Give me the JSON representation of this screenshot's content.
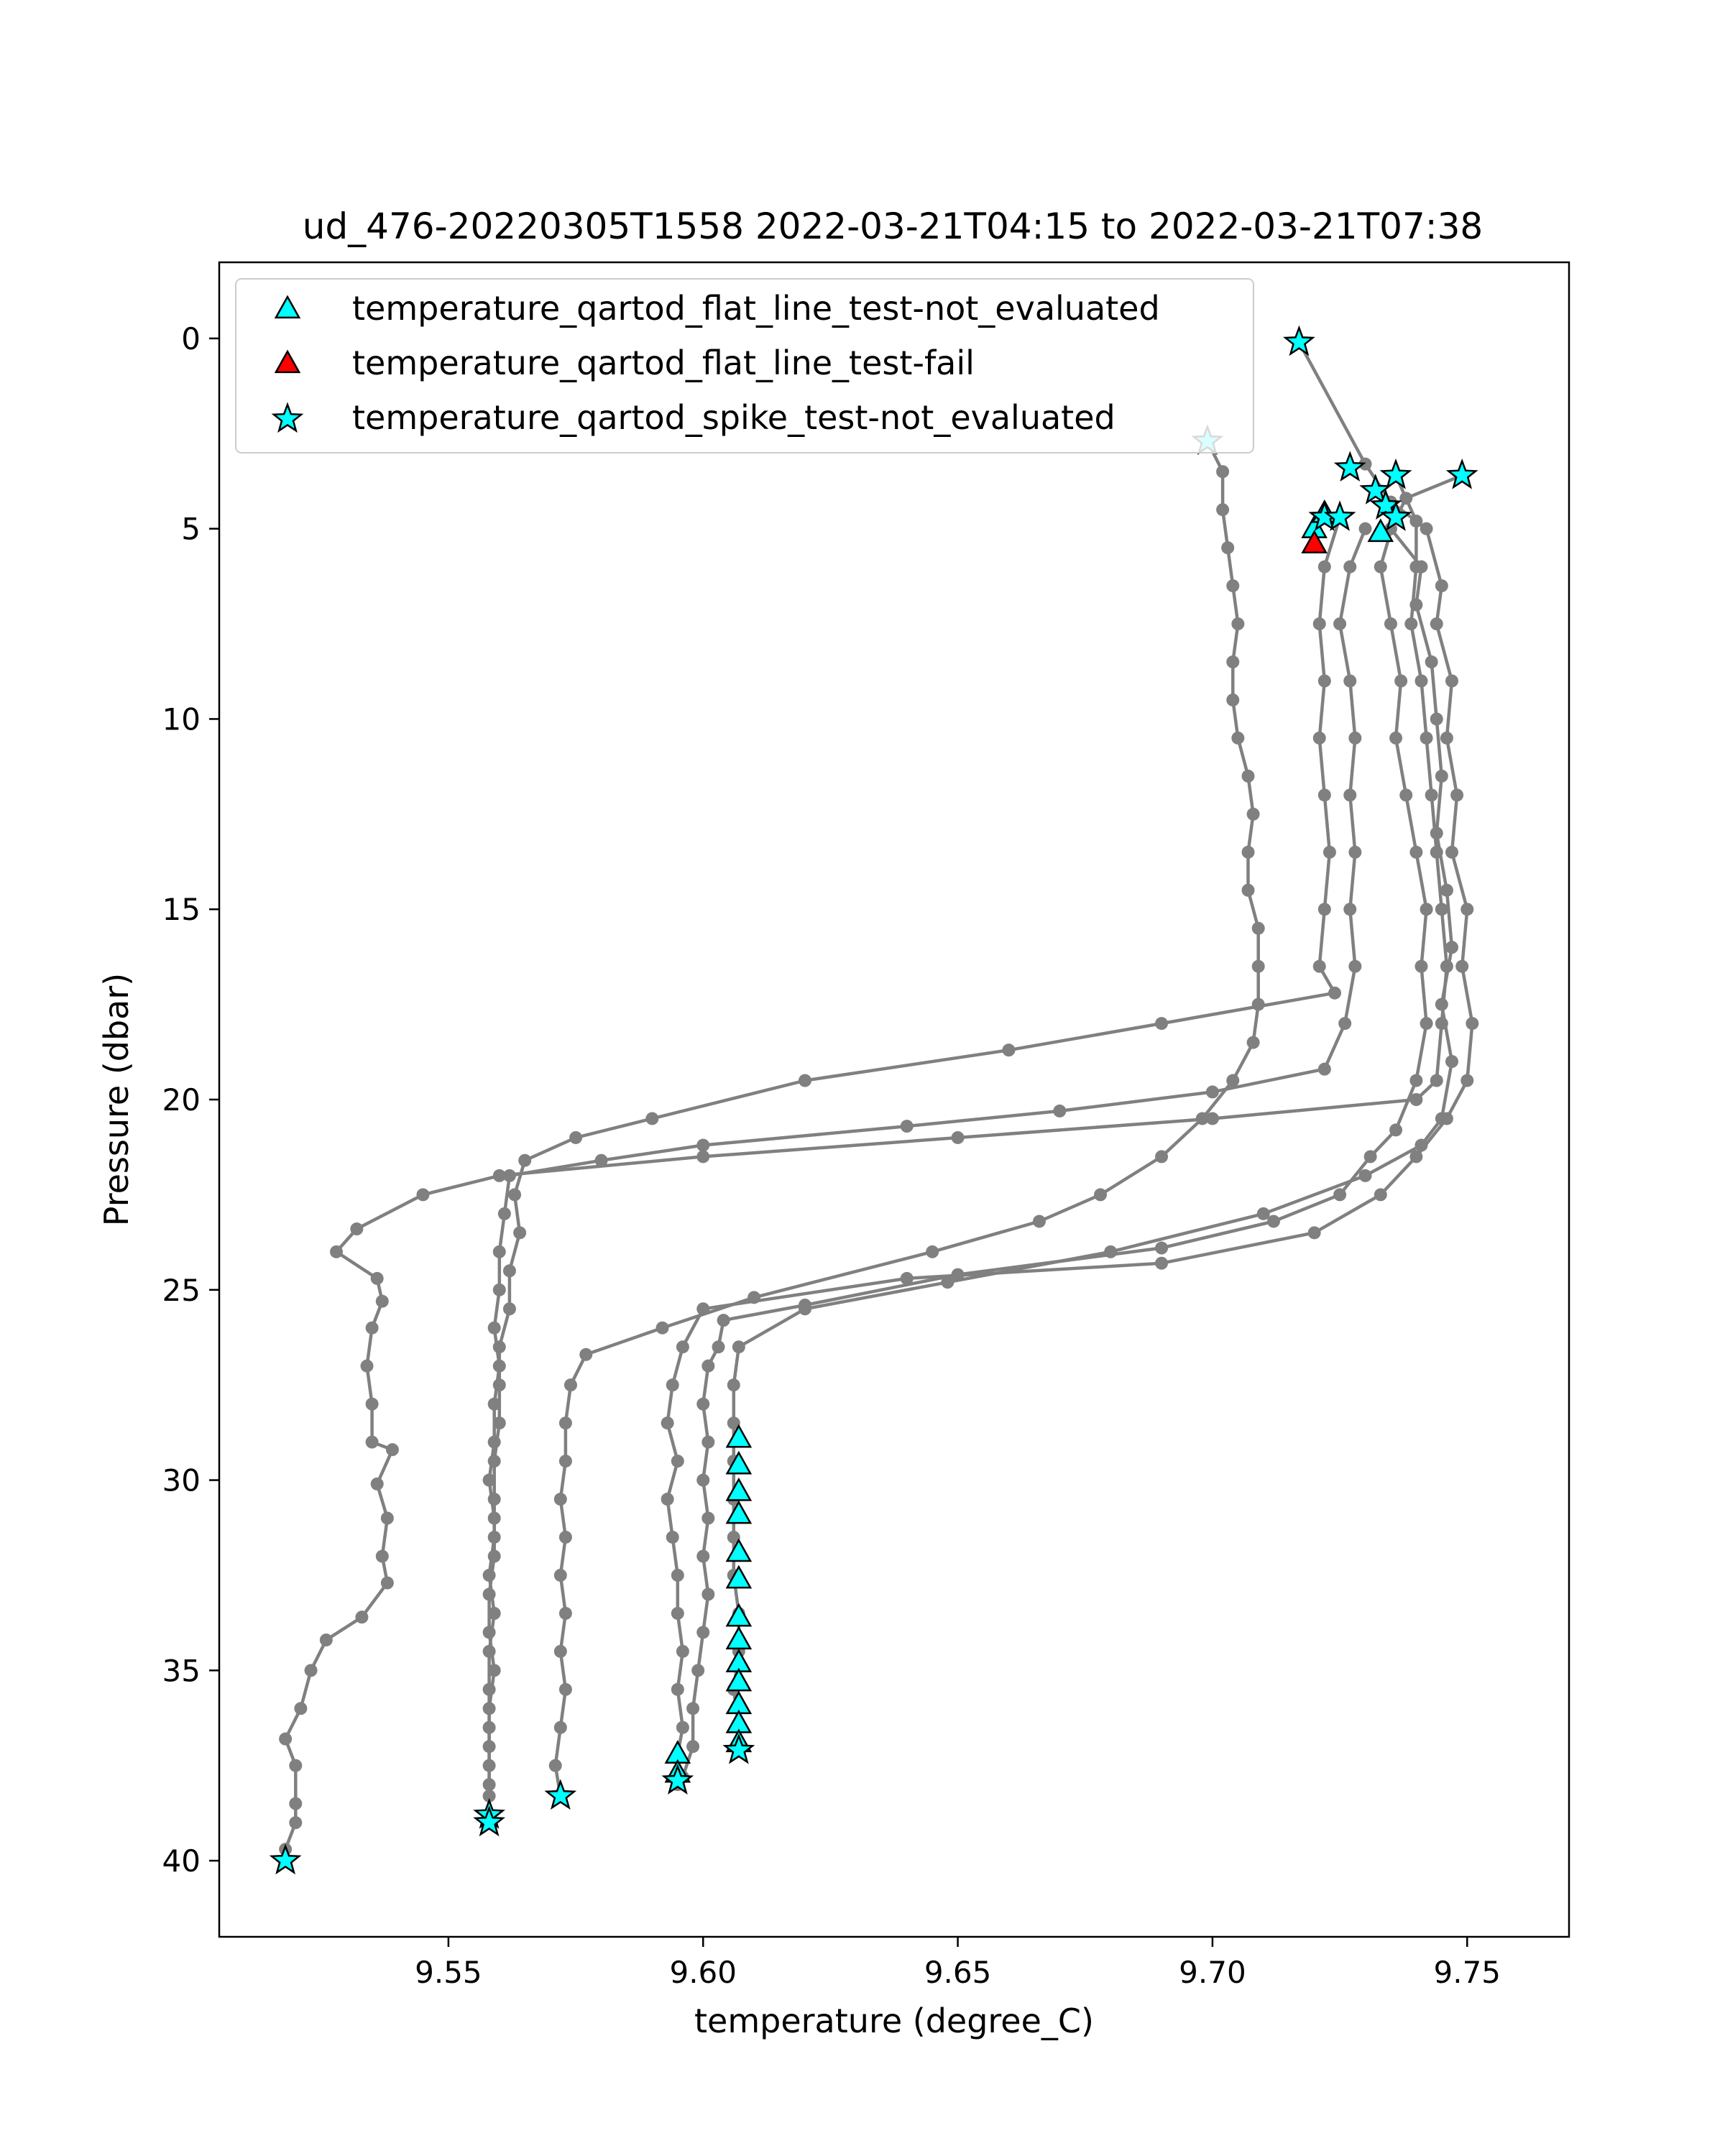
{
  "chart_data": {
    "type": "line",
    "title": "ud_476-20220305T1558 2022-03-21T04:15 to 2022-03-21T07:38",
    "xlabel": "temperature (degree_C)",
    "ylabel": "Pressure (dbar)",
    "xlim": [
      9.505,
      9.77
    ],
    "ylim": [
      42,
      -2
    ],
    "y_inverted": true,
    "x_ticks": [
      9.55,
      9.6,
      9.65,
      9.7,
      9.75
    ],
    "x_tick_labels": [
      "9.55",
      "9.60",
      "9.65",
      "9.70",
      "9.75"
    ],
    "y_ticks": [
      0,
      5,
      10,
      15,
      20,
      25,
      30,
      35,
      40
    ],
    "y_tick_labels": [
      "0",
      "5",
      "10",
      "15",
      "20",
      "25",
      "30",
      "35",
      "40"
    ],
    "grid": false,
    "legend_position": "top-left",
    "line_color": "#808080",
    "marker_fill": "#00ffff",
    "fail_fill": "#ff0000",
    "legend": [
      {
        "label": "temperature_qartod_flat_line_test-not_evaluated",
        "marker": "triangle",
        "color": "#00ffff"
      },
      {
        "label": "temperature_qartod_flat_line_test-fail",
        "marker": "triangle",
        "color": "#ff0000"
      },
      {
        "label": "temperature_qartod_spike_test-not_evaluated",
        "marker": "star",
        "color": "#00ffff"
      }
    ],
    "series": [
      {
        "points": [
          [
            9.717,
            0.1
          ],
          [
            9.73,
            3.3
          ],
          [
            9.735,
            4.3
          ],
          [
            9.742,
            5.0
          ],
          [
            9.745,
            6.5
          ],
          [
            9.744,
            7.5
          ],
          [
            9.747,
            9.0
          ],
          [
            9.746,
            10.5
          ],
          [
            9.748,
            12.0
          ],
          [
            9.747,
            13.5
          ],
          [
            9.75,
            15.0
          ],
          [
            9.749,
            16.5
          ],
          [
            9.751,
            18.0
          ],
          [
            9.75,
            19.5
          ],
          [
            9.746,
            20.5
          ],
          [
            9.74,
            21.5
          ],
          [
            9.733,
            22.5
          ],
          [
            9.72,
            23.5
          ],
          [
            9.69,
            24.3
          ],
          [
            9.64,
            24.7
          ],
          [
            9.6,
            25.5
          ],
          [
            9.596,
            26.5
          ],
          [
            9.594,
            27.5
          ],
          [
            9.593,
            28.5
          ],
          [
            9.595,
            29.5
          ],
          [
            9.593,
            30.5
          ],
          [
            9.594,
            31.5
          ],
          [
            9.595,
            32.5
          ],
          [
            9.595,
            33.5
          ],
          [
            9.596,
            34.5
          ],
          [
            9.595,
            35.5
          ],
          [
            9.596,
            36.5
          ],
          [
            9.595,
            37.2
          ],
          [
            9.595,
            38.0
          ]
        ]
      },
      {
        "points": [
          [
            9.749,
            3.6
          ],
          [
            9.738,
            4.2
          ],
          [
            9.735,
            5.0
          ],
          [
            9.741,
            6.0
          ],
          [
            9.74,
            7.0
          ],
          [
            9.743,
            8.5
          ],
          [
            9.744,
            10.0
          ],
          [
            9.745,
            11.5
          ],
          [
            9.744,
            13.0
          ],
          [
            9.746,
            14.5
          ],
          [
            9.747,
            16.0
          ],
          [
            9.745,
            17.5
          ],
          [
            9.747,
            19.0
          ],
          [
            9.745,
            20.5
          ],
          [
            9.741,
            21.2
          ],
          [
            9.73,
            22.0
          ],
          [
            9.71,
            23.0
          ],
          [
            9.68,
            24.0
          ],
          [
            9.648,
            24.8
          ],
          [
            9.62,
            25.5
          ],
          [
            9.607,
            26.5
          ],
          [
            9.606,
            27.5
          ],
          [
            9.606,
            28.5
          ],
          [
            9.606,
            29.5
          ],
          [
            9.606,
            30.5
          ],
          [
            9.606,
            31.5
          ],
          [
            9.606,
            32.5
          ],
          [
            9.607,
            33.5
          ],
          [
            9.607,
            34.5
          ],
          [
            9.606,
            35.5
          ],
          [
            9.607,
            36.5
          ],
          [
            9.607,
            37.1
          ]
        ]
      },
      {
        "points": [
          [
            9.699,
            2.7
          ],
          [
            9.702,
            3.5
          ],
          [
            9.702,
            4.5
          ],
          [
            9.703,
            5.5
          ],
          [
            9.704,
            6.5
          ],
          [
            9.705,
            7.5
          ],
          [
            9.704,
            8.5
          ],
          [
            9.704,
            9.5
          ],
          [
            9.705,
            10.5
          ],
          [
            9.707,
            11.5
          ],
          [
            9.708,
            12.5
          ],
          [
            9.707,
            13.5
          ],
          [
            9.707,
            14.5
          ],
          [
            9.709,
            15.5
          ],
          [
            9.709,
            16.5
          ],
          [
            9.709,
            17.5
          ],
          [
            9.708,
            18.5
          ],
          [
            9.704,
            19.5
          ],
          [
            9.698,
            20.5
          ],
          [
            9.69,
            21.5
          ],
          [
            9.678,
            22.5
          ],
          [
            9.666,
            23.2
          ],
          [
            9.645,
            24.0
          ],
          [
            9.61,
            25.2
          ],
          [
            9.592,
            26.0
          ],
          [
            9.577,
            26.7
          ],
          [
            9.574,
            27.5
          ],
          [
            9.573,
            28.5
          ],
          [
            9.573,
            29.5
          ],
          [
            9.572,
            30.5
          ],
          [
            9.573,
            31.5
          ],
          [
            9.572,
            32.5
          ],
          [
            9.573,
            33.5
          ],
          [
            9.572,
            34.5
          ],
          [
            9.573,
            35.5
          ],
          [
            9.572,
            36.5
          ],
          [
            9.571,
            37.5
          ],
          [
            9.572,
            38.3
          ]
        ]
      },
      {
        "points": [
          [
            9.73,
            5.0
          ],
          [
            9.727,
            6.0
          ],
          [
            9.725,
            7.5
          ],
          [
            9.727,
            9.0
          ],
          [
            9.728,
            10.5
          ],
          [
            9.727,
            12.0
          ],
          [
            9.728,
            13.5
          ],
          [
            9.727,
            15.0
          ],
          [
            9.728,
            16.5
          ],
          [
            9.726,
            18.0
          ],
          [
            9.722,
            19.2
          ],
          [
            9.7,
            19.8
          ],
          [
            9.67,
            20.3
          ],
          [
            9.64,
            20.7
          ],
          [
            9.6,
            21.2
          ],
          [
            9.58,
            21.6
          ],
          [
            9.562,
            22.0
          ],
          [
            9.561,
            23.0
          ],
          [
            9.56,
            24.0
          ],
          [
            9.56,
            25.0
          ],
          [
            9.559,
            26.0
          ],
          [
            9.56,
            27.0
          ],
          [
            9.559,
            28.0
          ],
          [
            9.559,
            29.0
          ],
          [
            9.558,
            30.0
          ],
          [
            9.559,
            31.0
          ],
          [
            9.559,
            32.0
          ],
          [
            9.558,
            33.0
          ],
          [
            9.558,
            34.0
          ],
          [
            9.559,
            35.0
          ],
          [
            9.558,
            36.0
          ],
          [
            9.558,
            37.0
          ],
          [
            9.558,
            38.0
          ],
          [
            9.558,
            38.8
          ]
        ]
      },
      {
        "points": [
          [
            9.725,
            4.7
          ],
          [
            9.722,
            6.0
          ],
          [
            9.721,
            7.5
          ],
          [
            9.722,
            9.0
          ],
          [
            9.721,
            10.5
          ],
          [
            9.722,
            12.0
          ],
          [
            9.723,
            13.5
          ],
          [
            9.722,
            15.0
          ],
          [
            9.721,
            16.5
          ],
          [
            9.724,
            17.2
          ],
          [
            9.69,
            18.0
          ],
          [
            9.66,
            18.7
          ],
          [
            9.62,
            19.5
          ],
          [
            9.59,
            20.5
          ],
          [
            9.575,
            21.0
          ],
          [
            9.565,
            21.6
          ],
          [
            9.563,
            22.5
          ],
          [
            9.564,
            23.5
          ],
          [
            9.562,
            24.5
          ],
          [
            9.562,
            25.5
          ],
          [
            9.56,
            26.5
          ],
          [
            9.56,
            27.5
          ],
          [
            9.56,
            28.5
          ],
          [
            9.559,
            29.5
          ],
          [
            9.559,
            30.5
          ],
          [
            9.559,
            31.5
          ],
          [
            9.558,
            32.5
          ],
          [
            9.559,
            33.5
          ],
          [
            9.558,
            34.5
          ],
          [
            9.558,
            35.5
          ],
          [
            9.558,
            36.5
          ],
          [
            9.558,
            37.5
          ],
          [
            9.558,
            38.3
          ],
          [
            9.558,
            39.0
          ]
        ]
      },
      {
        "points": [
          [
            9.736,
            3.6
          ],
          [
            9.74,
            4.8
          ],
          [
            9.74,
            6.0
          ],
          [
            9.739,
            7.5
          ],
          [
            9.741,
            9.0
          ],
          [
            9.742,
            10.5
          ],
          [
            9.743,
            12.0
          ],
          [
            9.744,
            13.5
          ],
          [
            9.745,
            15.0
          ],
          [
            9.746,
            16.5
          ],
          [
            9.745,
            18.0
          ],
          [
            9.744,
            19.5
          ],
          [
            9.74,
            20.0
          ],
          [
            9.7,
            20.5
          ],
          [
            9.65,
            21.0
          ],
          [
            9.6,
            21.5
          ],
          [
            9.56,
            22.0
          ],
          [
            9.545,
            22.5
          ],
          [
            9.532,
            23.4
          ],
          [
            9.528,
            24.0
          ],
          [
            9.536,
            24.7
          ],
          [
            9.537,
            25.3
          ],
          [
            9.535,
            26.0
          ],
          [
            9.534,
            27.0
          ],
          [
            9.535,
            28.0
          ],
          [
            9.535,
            29.0
          ],
          [
            9.539,
            29.2
          ],
          [
            9.536,
            30.1
          ],
          [
            9.538,
            31.0
          ],
          [
            9.537,
            32.0
          ],
          [
            9.538,
            32.7
          ],
          [
            9.533,
            33.6
          ],
          [
            9.526,
            34.2
          ],
          [
            9.523,
            35.0
          ],
          [
            9.521,
            36.0
          ],
          [
            9.518,
            36.8
          ],
          [
            9.52,
            37.5
          ],
          [
            9.52,
            38.5
          ],
          [
            9.52,
            39.0
          ],
          [
            9.518,
            39.7
          ],
          [
            9.518,
            40.0
          ]
        ]
      },
      {
        "points": [
          [
            9.736,
            4.6
          ],
          [
            9.733,
            6.0
          ],
          [
            9.735,
            7.5
          ],
          [
            9.737,
            9.0
          ],
          [
            9.736,
            10.5
          ],
          [
            9.738,
            12.0
          ],
          [
            9.74,
            13.5
          ],
          [
            9.742,
            15.0
          ],
          [
            9.741,
            16.5
          ],
          [
            9.742,
            18.0
          ],
          [
            9.74,
            19.5
          ],
          [
            9.736,
            20.8
          ],
          [
            9.731,
            21.5
          ],
          [
            9.725,
            22.5
          ],
          [
            9.712,
            23.2
          ],
          [
            9.69,
            23.9
          ],
          [
            9.65,
            24.6
          ],
          [
            9.62,
            25.4
          ],
          [
            9.604,
            25.8
          ],
          [
            9.603,
            26.5
          ],
          [
            9.601,
            27.0
          ],
          [
            9.6,
            28.0
          ],
          [
            9.601,
            29.0
          ],
          [
            9.6,
            30.0
          ],
          [
            9.601,
            31.0
          ],
          [
            9.6,
            32.0
          ],
          [
            9.601,
            33.0
          ],
          [
            9.6,
            34.0
          ],
          [
            9.599,
            35.0
          ],
          [
            9.598,
            36.0
          ],
          [
            9.598,
            37.0
          ],
          [
            9.596,
            37.8
          ]
        ]
      }
    ],
    "flat_line_not_evaluated": [
      [
        9.607,
        28.9
      ],
      [
        9.607,
        29.6
      ],
      [
        9.607,
        30.3
      ],
      [
        9.607,
        30.9
      ],
      [
        9.607,
        31.9
      ],
      [
        9.607,
        32.6
      ],
      [
        9.607,
        33.6
      ],
      [
        9.607,
        34.2
      ],
      [
        9.607,
        34.8
      ],
      [
        9.607,
        35.3
      ],
      [
        9.607,
        35.9
      ],
      [
        9.607,
        36.4
      ],
      [
        9.607,
        36.9
      ],
      [
        9.595,
        37.2
      ],
      [
        9.595,
        37.7
      ],
      [
        9.733,
        5.1
      ],
      [
        9.72,
        5.0
      ],
      [
        9.722,
        4.6
      ]
    ],
    "flat_line_fail": [
      [
        9.72,
        5.4
      ]
    ],
    "spike_not_evaluated": [
      [
        9.717,
        0.1
      ],
      [
        9.699,
        2.7
      ],
      [
        9.727,
        3.4
      ],
      [
        9.736,
        3.6
      ],
      [
        9.749,
        3.6
      ],
      [
        9.732,
        4.0
      ],
      [
        9.734,
        4.4
      ],
      [
        9.736,
        4.7
      ],
      [
        9.722,
        4.7
      ],
      [
        9.725,
        4.7
      ],
      [
        9.558,
        38.8
      ],
      [
        9.558,
        39.0
      ],
      [
        9.572,
        38.3
      ],
      [
        9.595,
        37.9
      ],
      [
        9.607,
        37.1
      ],
      [
        9.518,
        40.0
      ]
    ]
  }
}
